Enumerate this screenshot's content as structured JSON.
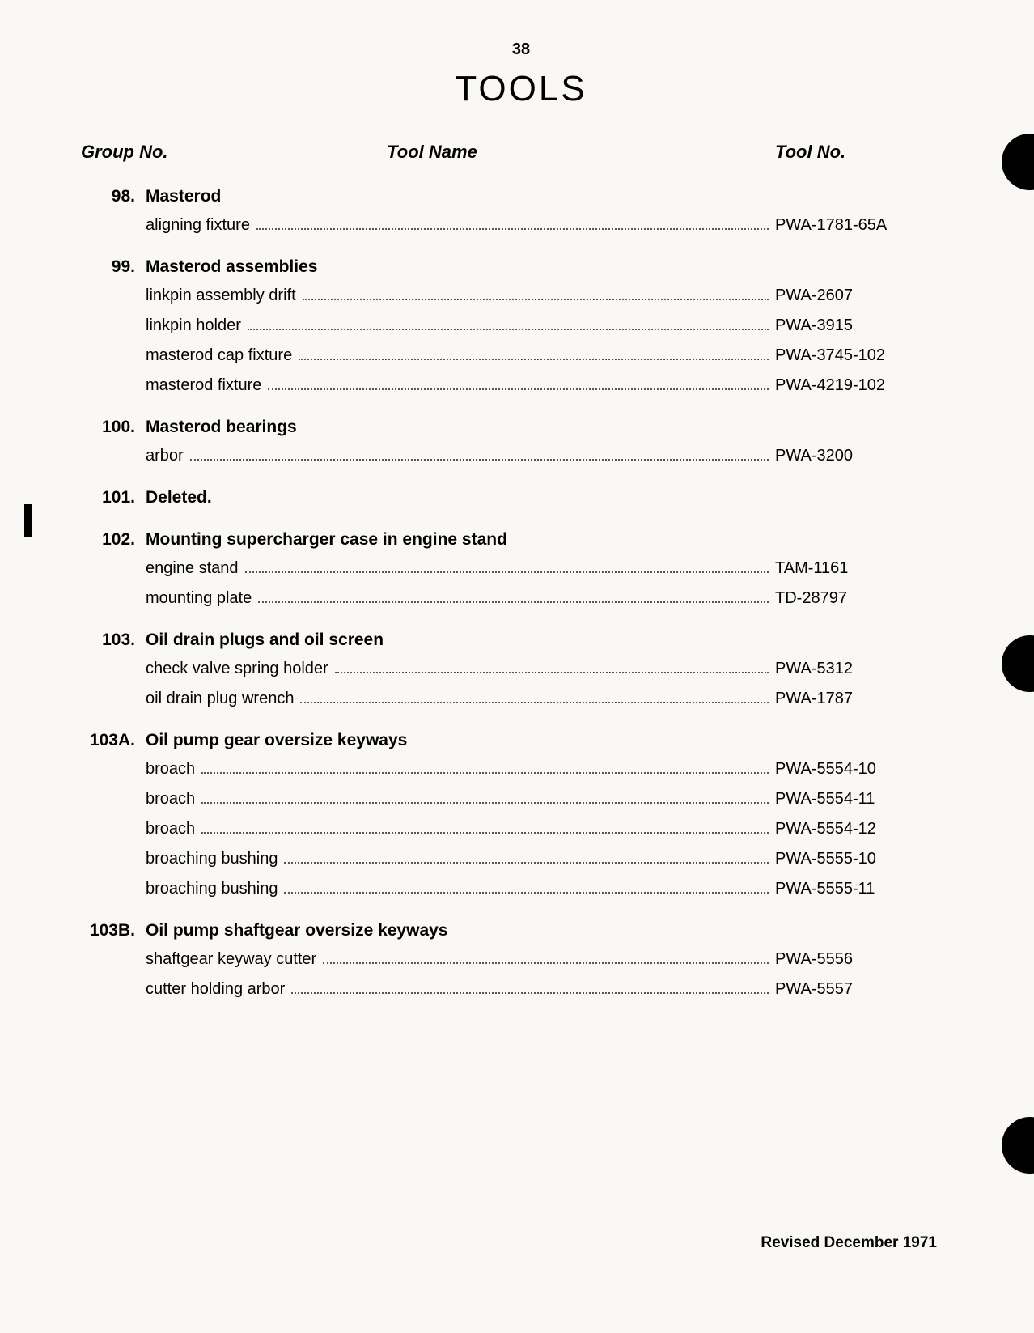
{
  "page_number": "38",
  "title": "TOOLS",
  "headers": {
    "group": "Group No.",
    "name": "Tool Name",
    "toolno": "Tool No."
  },
  "groups": [
    {
      "no": "98.",
      "title": "Masterod",
      "tools": [
        {
          "name": "aligning fixture",
          "no": "PWA-1781-65A"
        }
      ]
    },
    {
      "no": "99.",
      "title": "Masterod assemblies",
      "tools": [
        {
          "name": "linkpin assembly drift",
          "no": "PWA-2607"
        },
        {
          "name": "linkpin holder",
          "no": "PWA-3915"
        },
        {
          "name": "masterod cap fixture",
          "no": "PWA-3745-102"
        },
        {
          "name": "masterod fixture",
          "no": "PWA-4219-102"
        }
      ]
    },
    {
      "no": "100.",
      "title": "Masterod bearings",
      "tools": [
        {
          "name": "arbor",
          "no": "PWA-3200"
        }
      ]
    },
    {
      "no": "101.",
      "title": "Deleted.",
      "tools": []
    },
    {
      "no": "102.",
      "title": "Mounting supercharger case in engine stand",
      "tools": [
        {
          "name": "engine stand",
          "no": "TAM-1161"
        },
        {
          "name": "mounting plate",
          "no": "TD-28797"
        }
      ]
    },
    {
      "no": "103.",
      "title": "Oil drain plugs and oil screen",
      "tools": [
        {
          "name": "check valve spring holder",
          "no": "PWA-5312"
        },
        {
          "name": "oil drain plug wrench",
          "no": "PWA-1787"
        }
      ]
    },
    {
      "no": "103A.",
      "title": "Oil pump gear oversize keyways",
      "tools": [
        {
          "name": "broach",
          "no": "PWA-5554-10"
        },
        {
          "name": "broach",
          "no": "PWA-5554-11"
        },
        {
          "name": "broach",
          "no": "PWA-5554-12"
        },
        {
          "name": "broaching bushing",
          "no": "PWA-5555-10"
        },
        {
          "name": "broaching bushing",
          "no": "PWA-5555-11"
        }
      ]
    },
    {
      "no": "103B.",
      "title": "Oil pump shaftgear oversize keyways",
      "tools": [
        {
          "name": "shaftgear keyway cutter",
          "no": "PWA-5556"
        },
        {
          "name": "cutter holding arbor",
          "no": "PWA-5557"
        }
      ]
    }
  ],
  "revision": "Revised December 1971"
}
